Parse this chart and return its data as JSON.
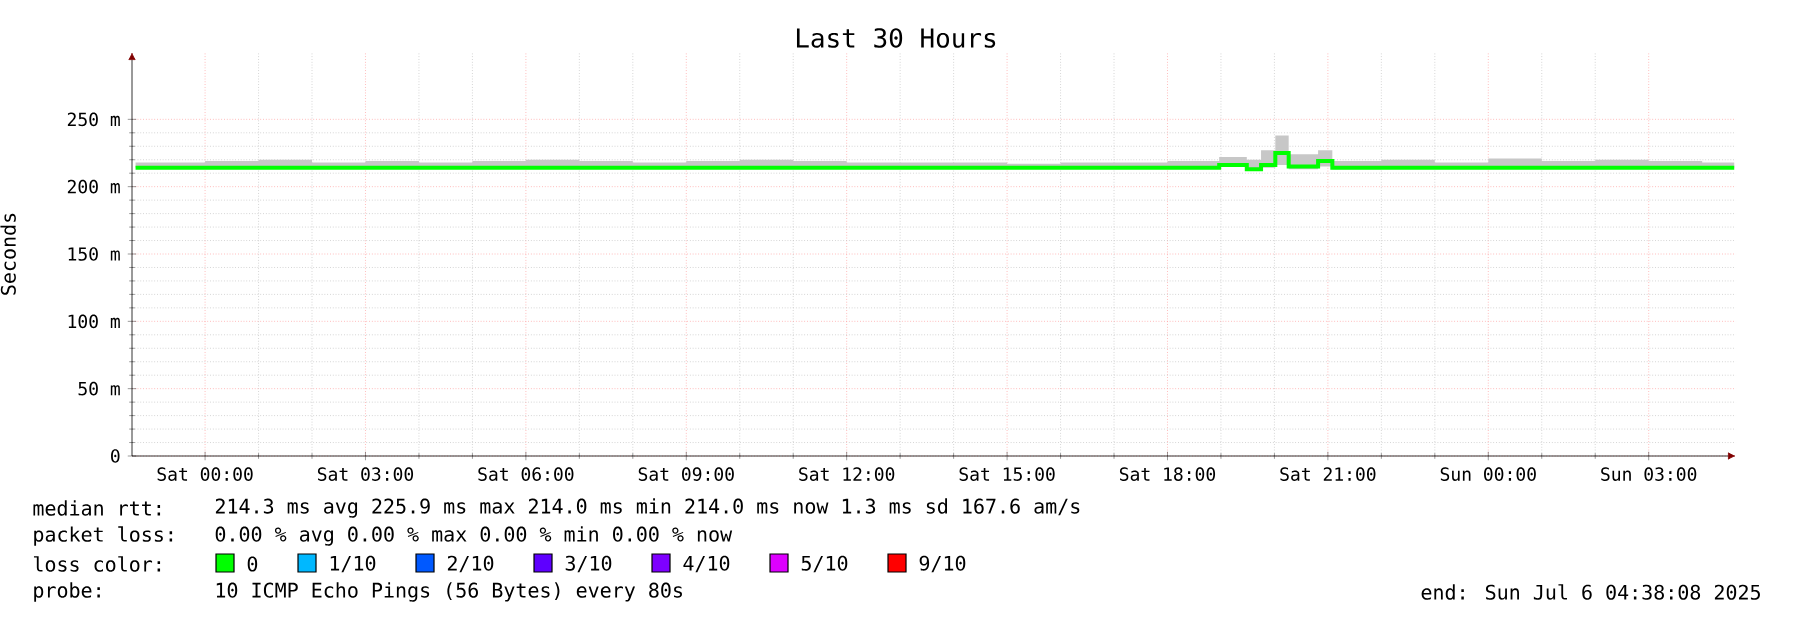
{
  "chart_data": {
    "type": "step",
    "title": "Last 30 Hours",
    "ylabel": "Seconds",
    "x": [
      "2025-07-04T22:42",
      "2025-07-05T00:00",
      "2025-07-05T01:00",
      "2025-07-05T02:00",
      "2025-07-05T03:00",
      "2025-07-05T04:00",
      "2025-07-05T05:00",
      "2025-07-05T06:00",
      "2025-07-05T07:00",
      "2025-07-05T08:00",
      "2025-07-05T09:00",
      "2025-07-05T10:00",
      "2025-07-05T11:00",
      "2025-07-05T12:00",
      "2025-07-05T13:00",
      "2025-07-05T14:00",
      "2025-07-05T15:00",
      "2025-07-05T16:00",
      "2025-07-05T17:00",
      "2025-07-05T18:00",
      "2025-07-05T18:58",
      "2025-07-05T19:29",
      "2025-07-05T19:45",
      "2025-07-05T20:01",
      "2025-07-05T20:16",
      "2025-07-05T20:49",
      "2025-07-05T21:05",
      "2025-07-05T22:00",
      "2025-07-05T23:00",
      "2025-07-06T00:00",
      "2025-07-06T01:00",
      "2025-07-06T02:00",
      "2025-07-06T03:00",
      "2025-07-06T04:00",
      "2025-07-06T04:36"
    ],
    "series": [
      {
        "name": "0",
        "color": "#00ff00",
        "values": [
          214,
          214,
          214,
          214,
          214,
          214,
          214,
          214,
          214,
          214,
          214,
          214,
          214,
          214,
          214,
          214,
          214,
          214,
          214,
          214,
          216,
          213,
          216,
          225,
          215,
          219,
          214,
          214,
          214,
          214,
          214,
          214,
          214,
          214,
          214
        ],
        "lower": [
          214,
          214,
          214,
          214,
          214,
          214,
          214,
          214,
          214,
          214,
          214,
          214,
          214,
          214,
          214,
          214,
          214,
          214,
          214,
          214,
          215,
          212,
          214,
          216,
          213,
          215,
          213,
          214,
          214,
          214,
          214,
          214,
          214,
          214,
          214
        ],
        "upper": [
          218,
          219,
          220,
          218,
          219,
          218,
          219,
          220,
          219,
          218,
          219,
          220,
          219,
          218,
          218,
          218,
          217,
          218,
          218,
          219,
          222,
          220,
          227,
          238,
          224,
          227,
          219,
          220,
          218,
          221,
          219,
          220,
          219,
          218,
          218
        ]
      },
      {
        "name": "1/10",
        "color": "#00b8ff",
        "values": [
          null,
          null,
          null,
          null,
          null,
          null,
          null,
          null,
          null,
          null,
          null,
          null,
          null,
          null,
          null,
          null,
          null,
          null,
          null,
          null,
          null,
          null,
          null,
          null,
          null,
          null,
          null,
          null,
          null,
          null,
          null,
          null,
          null,
          null,
          null
        ]
      },
      {
        "name": "2/10",
        "color": "#0059ff",
        "values": [
          null,
          null,
          null,
          null,
          null,
          null,
          null,
          null,
          null,
          null,
          null,
          null,
          null,
          null,
          null,
          null,
          null,
          null,
          null,
          null,
          null,
          null,
          null,
          null,
          null,
          null,
          null,
          null,
          null,
          null,
          null,
          null,
          null,
          null,
          null
        ]
      },
      {
        "name": "3/10",
        "color": "#5e00ff",
        "values": [
          null,
          null,
          null,
          null,
          null,
          null,
          null,
          null,
          null,
          null,
          null,
          null,
          null,
          null,
          null,
          null,
          null,
          null,
          null,
          null,
          null,
          null,
          null,
          null,
          null,
          null,
          null,
          null,
          null,
          null,
          null,
          null,
          null,
          null,
          null
        ]
      },
      {
        "name": "4/10",
        "color": "#7e00ff",
        "values": [
          null,
          null,
          null,
          null,
          null,
          null,
          null,
          null,
          null,
          null,
          null,
          null,
          null,
          null,
          null,
          null,
          null,
          null,
          null,
          null,
          null,
          null,
          null,
          null,
          null,
          null,
          null,
          null,
          null,
          null,
          null,
          null,
          null,
          null,
          null
        ]
      },
      {
        "name": "5/10",
        "color": "#dd00ff",
        "values": [
          null,
          null,
          null,
          null,
          null,
          null,
          null,
          null,
          null,
          null,
          null,
          null,
          null,
          null,
          null,
          null,
          null,
          null,
          null,
          null,
          null,
          null,
          null,
          null,
          null,
          null,
          null,
          null,
          null,
          null,
          null,
          null,
          null,
          null,
          null
        ]
      },
      {
        "name": "9/10",
        "color": "#ff0000",
        "values": [
          null,
          null,
          null,
          null,
          null,
          null,
          null,
          null,
          null,
          null,
          null,
          null,
          null,
          null,
          null,
          null,
          null,
          null,
          null,
          null,
          null,
          null,
          null,
          null,
          null,
          null,
          null,
          null,
          null,
          null,
          null,
          null,
          null,
          null,
          null
        ]
      }
    ],
    "xlim": [
      "2025-07-04T22:38",
      "2025-07-06T04:38"
    ],
    "xticks": [
      {
        "value": "2025-07-05T00:00",
        "label": "Sat 00:00"
      },
      {
        "value": "2025-07-05T03:00",
        "label": "Sat 03:00"
      },
      {
        "value": "2025-07-05T06:00",
        "label": "Sat 06:00"
      },
      {
        "value": "2025-07-05T09:00",
        "label": "Sat 09:00"
      },
      {
        "value": "2025-07-05T12:00",
        "label": "Sat 12:00"
      },
      {
        "value": "2025-07-05T15:00",
        "label": "Sat 15:00"
      },
      {
        "value": "2025-07-05T18:00",
        "label": "Sat 18:00"
      },
      {
        "value": "2025-07-05T21:00",
        "label": "Sat 21:00"
      },
      {
        "value": "2025-07-06T00:00",
        "label": "Sun 00:00"
      },
      {
        "value": "2025-07-06T03:00",
        "label": "Sun 03:00"
      }
    ],
    "ylim": [
      0,
      300
    ],
    "yticks": [
      {
        "value": 0,
        "label": "0"
      },
      {
        "value": 50,
        "label": "50 m"
      },
      {
        "value": 100,
        "label": "100 m"
      },
      {
        "value": 150,
        "label": "150 m"
      },
      {
        "value": 200,
        "label": "200 m"
      },
      {
        "value": 250,
        "label": "250 m"
      }
    ],
    "grid": true,
    "legend": "bottom",
    "legend_title": "loss color:",
    "annotations": [
      "median rtt:",
      "214.3 ms avg  225.9 ms max  214.0 ms min  214.0 ms now  1.3 ms sd  167.6   am/s",
      "packet loss:",
      "0.00 % avg  0.00 % max  0.00 % min  0.00 % now",
      "probe:",
      "10 ICMP Echo Pings (56 Bytes) every 80s",
      "end: Sun Jul  6 04:38:08 2025"
    ]
  }
}
